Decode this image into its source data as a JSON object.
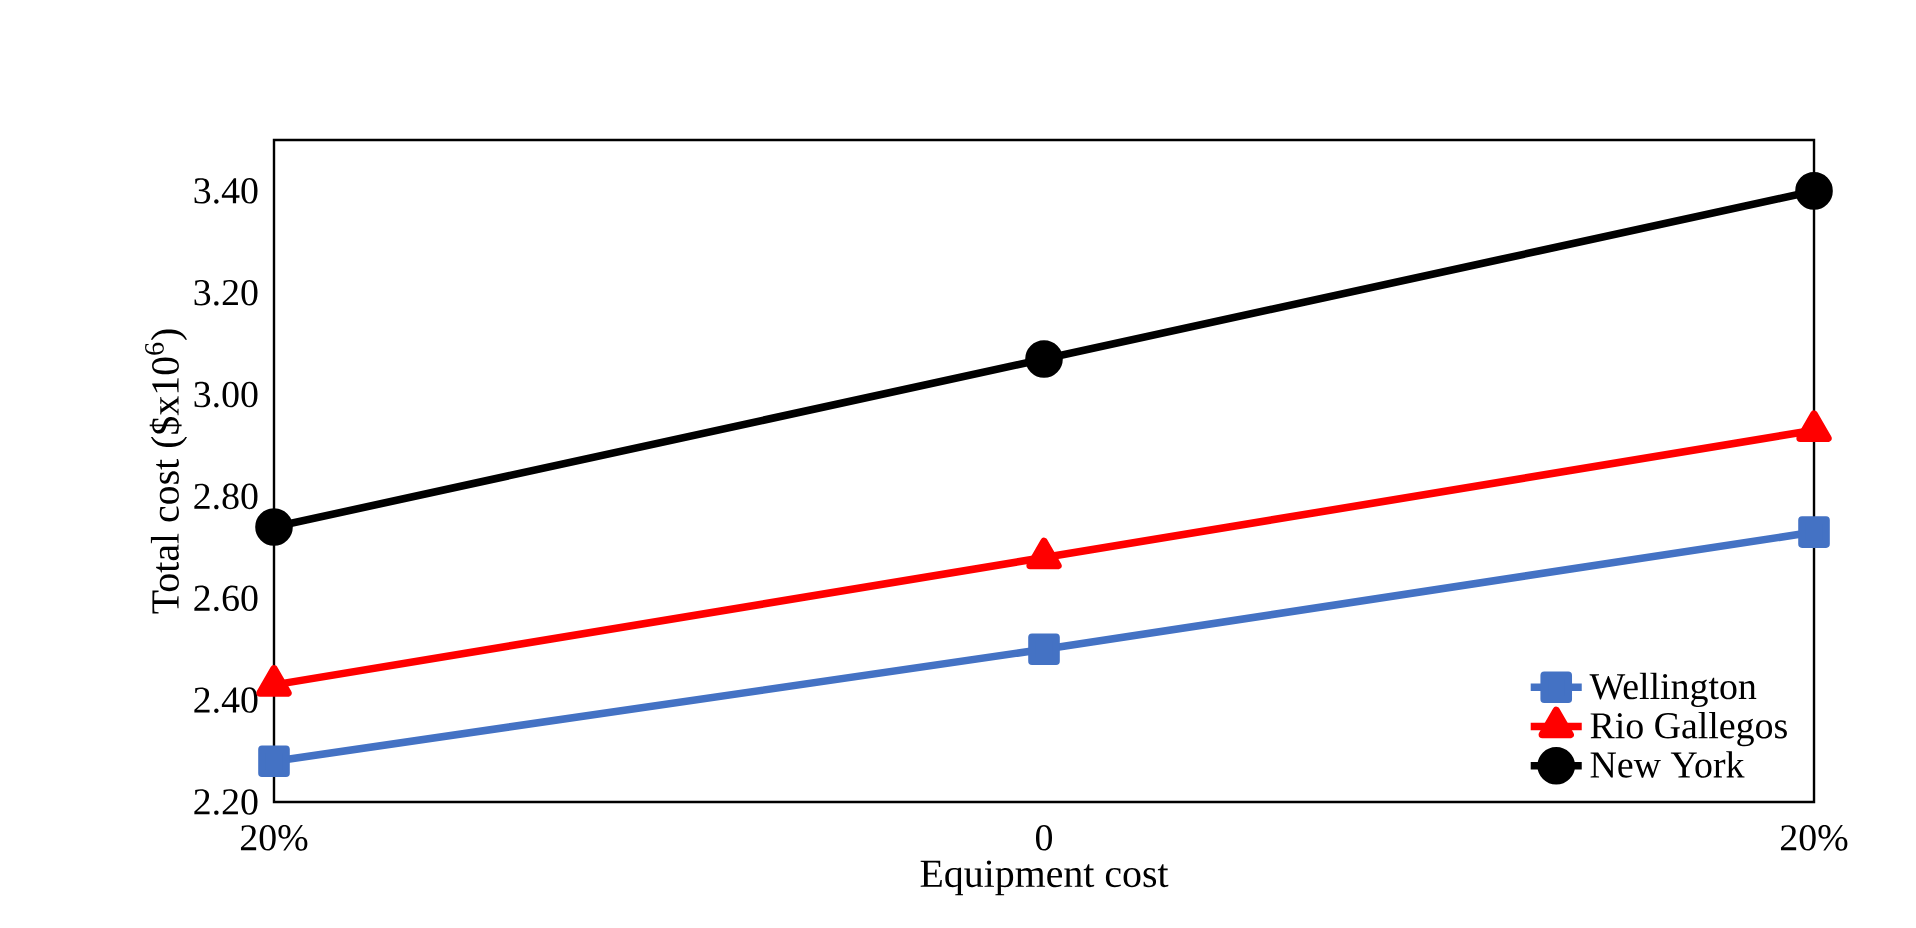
{
  "chart_data": {
    "type": "line",
    "xlabel": "Equipment cost",
    "ylabel": "Total cost ($x10$^{6}$)",
    "categories": [
      "20%",
      "0",
      "20%"
    ],
    "series": [
      {
        "name": "Wellington",
        "color": "#4472c4",
        "marker": "square",
        "values": [
          2.28,
          2.5,
          2.73
        ]
      },
      {
        "name": "Rio Gallegos",
        "color": "#ff0000",
        "marker": "triangle",
        "values": [
          2.43,
          2.68,
          2.93
        ]
      },
      {
        "name": "New York",
        "color": "#000000",
        "marker": "circle",
        "values": [
          2.74,
          3.07,
          3.4
        ]
      }
    ],
    "ylim": [
      2.2,
      3.5
    ],
    "yticks": [
      {
        "value": 2.2,
        "label": "2.20"
      },
      {
        "value": 2.4,
        "label": "2.40"
      },
      {
        "value": 2.6,
        "label": "2.60"
      },
      {
        "value": 2.8,
        "label": "2.80"
      },
      {
        "value": 3.0,
        "label": "3.00"
      },
      {
        "value": 3.2,
        "label": "3.20"
      },
      {
        "value": 3.4,
        "label": "3.40"
      }
    ],
    "grid": false,
    "legend": "bottom right",
    "line_style": "solid"
  }
}
